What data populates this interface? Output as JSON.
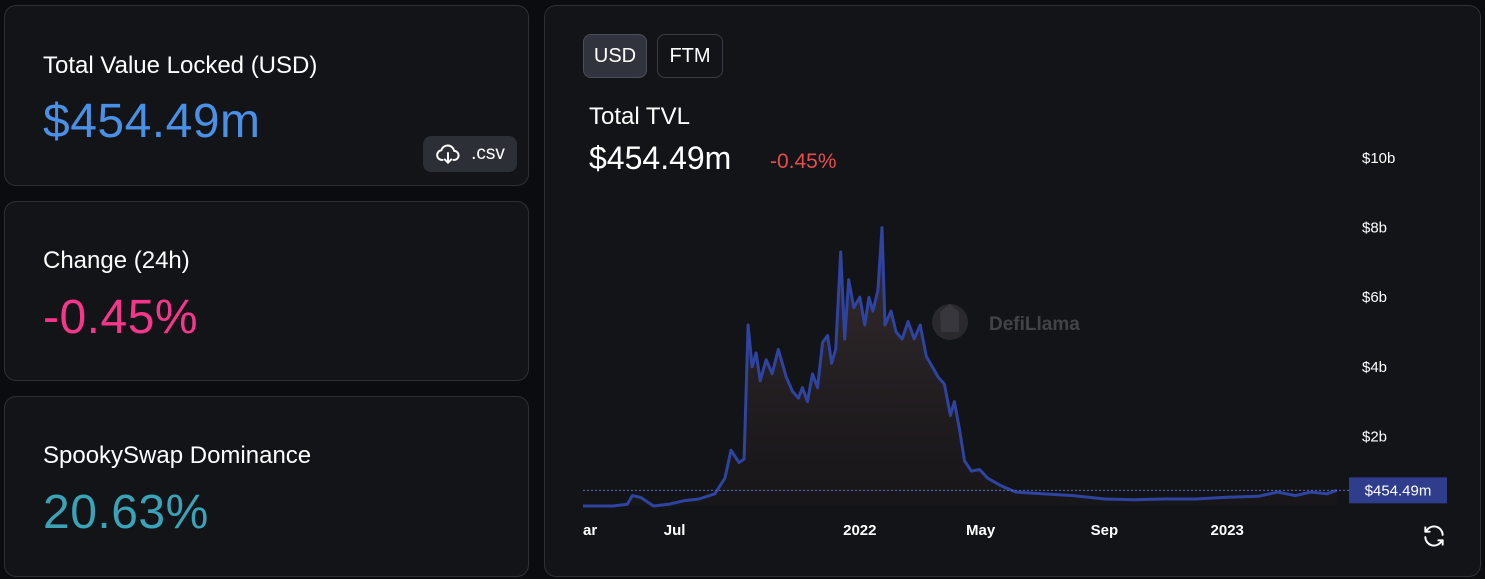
{
  "stats": {
    "tvl": {
      "label": "Total Value Locked (USD)",
      "value": "$454.49m"
    },
    "change": {
      "label": "Change (24h)",
      "value": "-0.45%"
    },
    "dominance": {
      "label": "SpookySwap Dominance",
      "value": "20.63%"
    }
  },
  "csv_button": {
    "label": ".csv",
    "icon": "cloud-download-icon"
  },
  "chart_panel": {
    "denominations": [
      "USD",
      "FTM"
    ],
    "selected_denomination": "USD",
    "title": "Total TVL",
    "value": "$454.49m",
    "change": "-0.45%",
    "watermark": "DefiLlama",
    "refresh_icon": "refresh-icon",
    "current_marker": "$454.49m"
  },
  "colors": {
    "tvl": "#4a90e6",
    "change": "#f6368a",
    "dominance": "#3ba3b7",
    "line": "#2f43a1",
    "negative": "#e64d4d",
    "marker_bg": "#2f3d8c"
  },
  "chart_data": {
    "type": "area",
    "title": "Total TVL",
    "xlabel": "",
    "ylabel": "",
    "x_ticks": [
      "ar",
      "Jul",
      "2022",
      "May",
      "Sep",
      "2023"
    ],
    "y_ticks": [
      "$2b",
      "$4b",
      "$6b",
      "$8b",
      "$10b"
    ],
    "ylim": [
      0,
      10
    ],
    "y_unit": "billions USD",
    "grid": false,
    "current_value_label": "$454.49m",
    "series": [
      {
        "points": [
          [
            "2021-04-01",
            0.0
          ],
          [
            "2021-05-01",
            0.0
          ],
          [
            "2021-05-15",
            0.05
          ],
          [
            "2021-05-20",
            0.3
          ],
          [
            "2021-05-28",
            0.25
          ],
          [
            "2021-06-10",
            0.0
          ],
          [
            "2021-06-25",
            0.05
          ],
          [
            "2021-07-10",
            0.15
          ],
          [
            "2021-07-25",
            0.2
          ],
          [
            "2021-08-10",
            0.35
          ],
          [
            "2021-08-20",
            0.8
          ],
          [
            "2021-08-26",
            1.6
          ],
          [
            "2021-09-03",
            1.25
          ],
          [
            "2021-09-08",
            1.35
          ],
          [
            "2021-09-12",
            5.2
          ],
          [
            "2021-09-16",
            4.0
          ],
          [
            "2021-09-20",
            4.4
          ],
          [
            "2021-09-24",
            3.6
          ],
          [
            "2021-09-30",
            4.2
          ],
          [
            "2021-10-06",
            3.8
          ],
          [
            "2021-10-12",
            4.5
          ],
          [
            "2021-10-20",
            3.7
          ],
          [
            "2021-10-26",
            3.3
          ],
          [
            "2021-11-01",
            3.1
          ],
          [
            "2021-11-05",
            3.4
          ],
          [
            "2021-11-10",
            3.0
          ],
          [
            "2021-11-15",
            3.8
          ],
          [
            "2021-11-20",
            3.4
          ],
          [
            "2021-11-25",
            4.7
          ],
          [
            "2021-11-30",
            4.9
          ],
          [
            "2021-12-04",
            4.1
          ],
          [
            "2021-12-08",
            4.5
          ],
          [
            "2021-12-13",
            7.3
          ],
          [
            "2021-12-17",
            4.8
          ],
          [
            "2021-12-21",
            6.5
          ],
          [
            "2021-12-26",
            5.7
          ],
          [
            "2022-01-01",
            6.0
          ],
          [
            "2022-01-06",
            5.2
          ],
          [
            "2022-01-10",
            6.0
          ],
          [
            "2022-01-14",
            5.6
          ],
          [
            "2022-01-19",
            6.2
          ],
          [
            "2022-01-23",
            8.0
          ],
          [
            "2022-01-26",
            5.2
          ],
          [
            "2022-02-01",
            5.6
          ],
          [
            "2022-02-06",
            5.0
          ],
          [
            "2022-02-12",
            4.8
          ],
          [
            "2022-02-18",
            5.3
          ],
          [
            "2022-02-24",
            4.8
          ],
          [
            "2022-03-02",
            5.2
          ],
          [
            "2022-03-08",
            4.3
          ],
          [
            "2022-03-14",
            4.0
          ],
          [
            "2022-03-20",
            3.7
          ],
          [
            "2022-03-26",
            3.5
          ],
          [
            "2022-04-01",
            2.6
          ],
          [
            "2022-04-05",
            3.0
          ],
          [
            "2022-04-10",
            2.2
          ],
          [
            "2022-04-15",
            1.3
          ],
          [
            "2022-04-22",
            1.0
          ],
          [
            "2022-04-30",
            1.05
          ],
          [
            "2022-05-08",
            0.8
          ],
          [
            "2022-05-20",
            0.6
          ],
          [
            "2022-06-05",
            0.4
          ],
          [
            "2022-07-01",
            0.35
          ],
          [
            "2022-08-01",
            0.3
          ],
          [
            "2022-09-01",
            0.2
          ],
          [
            "2022-10-01",
            0.18
          ],
          [
            "2022-11-01",
            0.2
          ],
          [
            "2022-12-01",
            0.2
          ],
          [
            "2023-01-01",
            0.25
          ],
          [
            "2023-02-01",
            0.28
          ],
          [
            "2023-02-20",
            0.4
          ],
          [
            "2023-03-10",
            0.3
          ],
          [
            "2023-03-25",
            0.4
          ],
          [
            "2023-04-10",
            0.35
          ],
          [
            "2023-04-20",
            0.45
          ]
        ]
      }
    ]
  }
}
